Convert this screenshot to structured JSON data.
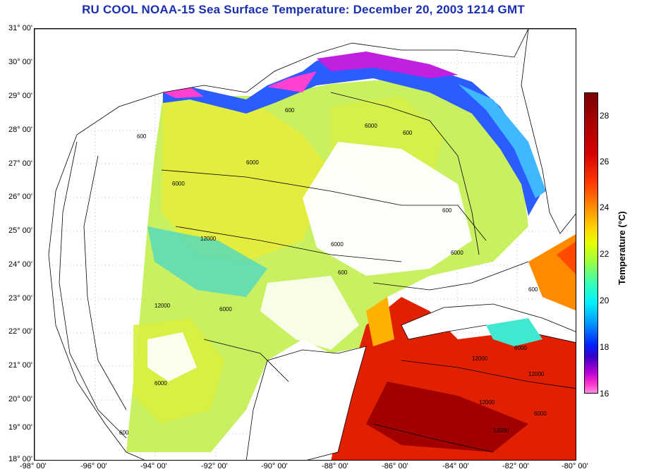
{
  "title": "RU COOL  NOAA-15  Sea Surface Temperature:  December 20, 2003 1214 GMT",
  "lat_ticks": [
    "31° 00'",
    "30° 00'",
    "29° 00'",
    "28° 00'",
    "27° 00'",
    "26° 00'",
    "25° 00'",
    "24° 00'",
    "23° 00'",
    "22° 00'",
    "21° 00'",
    "20° 00'",
    "19° 00'",
    "18° 00'"
  ],
  "lon_ticks": [
    "-98° 00'",
    "-96° 00'",
    "-94° 00'",
    "-92° 00'",
    "-90° 00'",
    "-88° 00'",
    "-86° 00'",
    "-84° 00'",
    "-82° 00'",
    "-80° 00'"
  ],
  "colorbar": {
    "label": "Temperature (°C)",
    "ticks": [
      "28",
      "26",
      "24",
      "22",
      "20",
      "18",
      "16"
    ],
    "range": [
      16,
      29
    ]
  },
  "contour_labels": [
    "600",
    "600",
    "6000",
    "6000",
    "12000",
    "6000",
    "600",
    "6000",
    "12000",
    "6000",
    "600",
    "600",
    "6000",
    "12000",
    "12000",
    "600",
    "6000",
    "12000",
    "6000",
    "12000",
    "600",
    "6000"
  ],
  "colors": {
    "title": "#1a2fb0",
    "land": "#ffffff",
    "cloud": "#ffffff"
  }
}
